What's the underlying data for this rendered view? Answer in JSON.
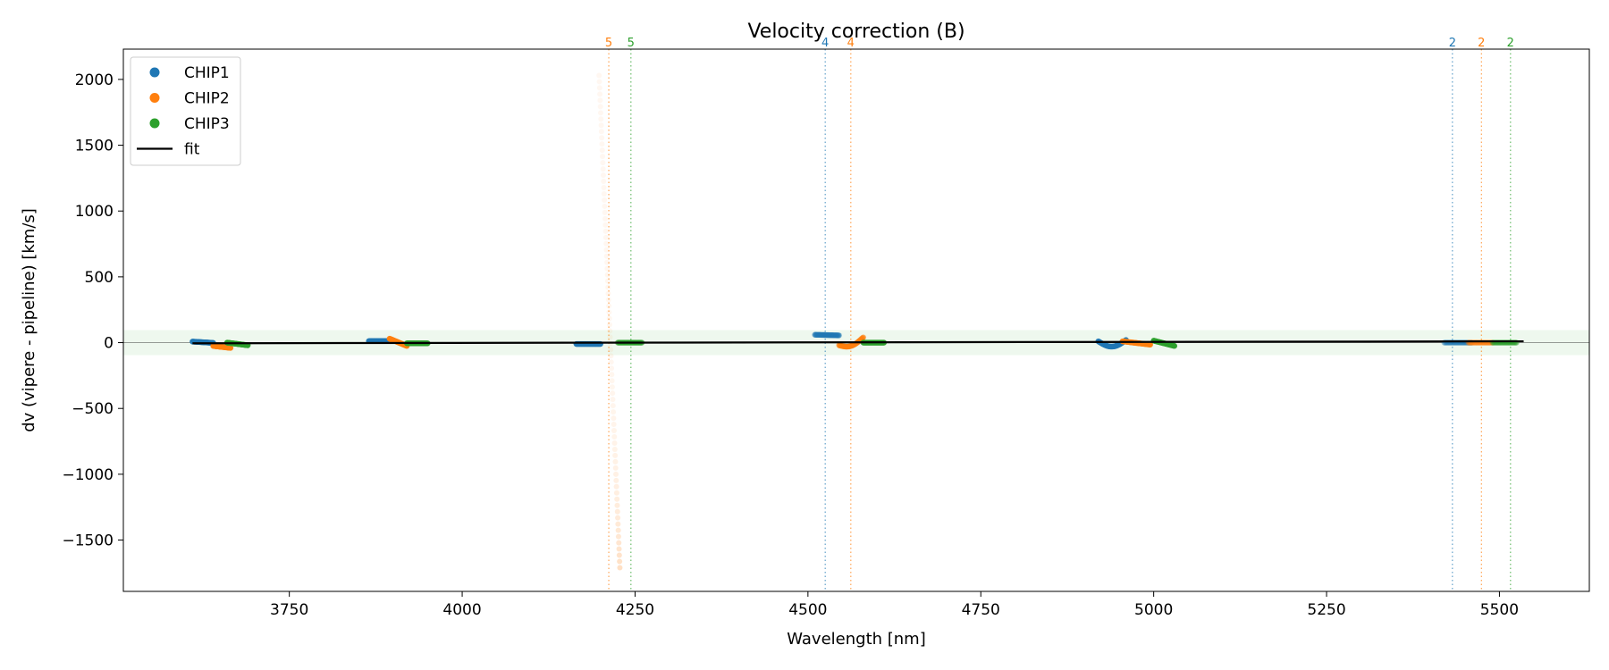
{
  "chart_data": {
    "type": "scatter",
    "title": "Velocity correction (B)",
    "xlabel": "Wavelength [nm]",
    "ylabel": "dv (vipere - pipeline) [km/s]",
    "xlim": [
      3510,
      5630
    ],
    "ylim": [
      -1890,
      2230
    ],
    "xticks": [
      3750,
      4000,
      4250,
      4500,
      4750,
      5000,
      5250,
      5500
    ],
    "yticks": [
      -1500,
      -1000,
      -500,
      0,
      500,
      1000,
      1500,
      2000
    ],
    "colors": {
      "CHIP1": "#1f77b4",
      "CHIP2": "#ff7f0e",
      "CHIP3": "#2ca02c",
      "fit": "#000000",
      "band": "#2ca02c"
    },
    "legend": {
      "position": "top-left",
      "entries": [
        "CHIP1",
        "CHIP2",
        "CHIP3",
        "fit"
      ]
    },
    "tolerance_band": [
      -95,
      95
    ],
    "zero_line": 0,
    "fit": {
      "x": [
        3610,
        5535
      ],
      "y": [
        -5,
        10
      ]
    },
    "series": [
      {
        "name": "CHIP1",
        "segments": [
          {
            "x0": 3610,
            "x1": 3640,
            "y0": 8,
            "y1": -2,
            "curve": 0,
            "alpha": 0.9
          },
          {
            "x0": 3865,
            "x1": 3895,
            "y0": 12,
            "y1": 12,
            "curve": 0,
            "alpha": 0.9
          },
          {
            "x0": 4165,
            "x1": 4200,
            "y0": -10,
            "y1": -10,
            "curve": 0,
            "alpha": 0.9
          },
          {
            "x0": 4510,
            "x1": 4545,
            "y0": 60,
            "y1": 55,
            "curve": 0,
            "alpha": 0.5
          },
          {
            "x0": 4920,
            "x1": 4960,
            "y0": 10,
            "y1": 20,
            "curve": -45,
            "alpha": 0.9
          },
          {
            "x0": 5420,
            "x1": 5460,
            "y0": 0,
            "y1": 0,
            "curve": 0,
            "alpha": 0.3
          }
        ]
      },
      {
        "name": "CHIP2",
        "segments": [
          {
            "x0": 3640,
            "x1": 3665,
            "y0": -25,
            "y1": -40,
            "curve": 0,
            "alpha": 0.9
          },
          {
            "x0": 3895,
            "x1": 3920,
            "y0": 30,
            "y1": -25,
            "curve": 0,
            "alpha": 0.9
          },
          {
            "x0": 4198,
            "x1": 4228,
            "y0": 2030,
            "y1": -1710,
            "curve": 0,
            "alpha": 0.12
          },
          {
            "x0": 4545,
            "x1": 4580,
            "y0": -20,
            "y1": 40,
            "curve": -35,
            "alpha": 0.6
          },
          {
            "x0": 4955,
            "x1": 4995,
            "y0": 10,
            "y1": -15,
            "curve": 0,
            "alpha": 0.9
          },
          {
            "x0": 5455,
            "x1": 5490,
            "y0": 0,
            "y1": 0,
            "curve": 0,
            "alpha": 0.3
          }
        ]
      },
      {
        "name": "CHIP3",
        "segments": [
          {
            "x0": 3660,
            "x1": 3690,
            "y0": 0,
            "y1": -20,
            "curve": 0,
            "alpha": 0.9
          },
          {
            "x0": 3920,
            "x1": 3950,
            "y0": -5,
            "y1": -5,
            "curve": 0,
            "alpha": 0.9
          },
          {
            "x0": 4225,
            "x1": 4260,
            "y0": 0,
            "y1": 0,
            "curve": 0,
            "alpha": 0.5
          },
          {
            "x0": 4580,
            "x1": 4610,
            "y0": 0,
            "y1": 0,
            "curve": 0,
            "alpha": 0.9
          },
          {
            "x0": 5000,
            "x1": 5030,
            "y0": 15,
            "y1": -25,
            "curve": 0,
            "alpha": 0.9
          },
          {
            "x0": 5490,
            "x1": 5525,
            "y0": 0,
            "y1": 0,
            "curve": 0,
            "alpha": 0.3
          }
        ]
      }
    ],
    "order_markers": [
      {
        "x": 4212,
        "label": "5",
        "series": "CHIP2"
      },
      {
        "x": 4244,
        "label": "5",
        "series": "CHIP3"
      },
      {
        "x": 4525,
        "label": "4",
        "series": "CHIP1"
      },
      {
        "x": 4562,
        "label": "4",
        "series": "CHIP2"
      },
      {
        "x": 5432,
        "label": "2",
        "series": "CHIP1"
      },
      {
        "x": 5474,
        "label": "2",
        "series": "CHIP2"
      },
      {
        "x": 5516,
        "label": "2",
        "series": "CHIP3"
      }
    ]
  }
}
